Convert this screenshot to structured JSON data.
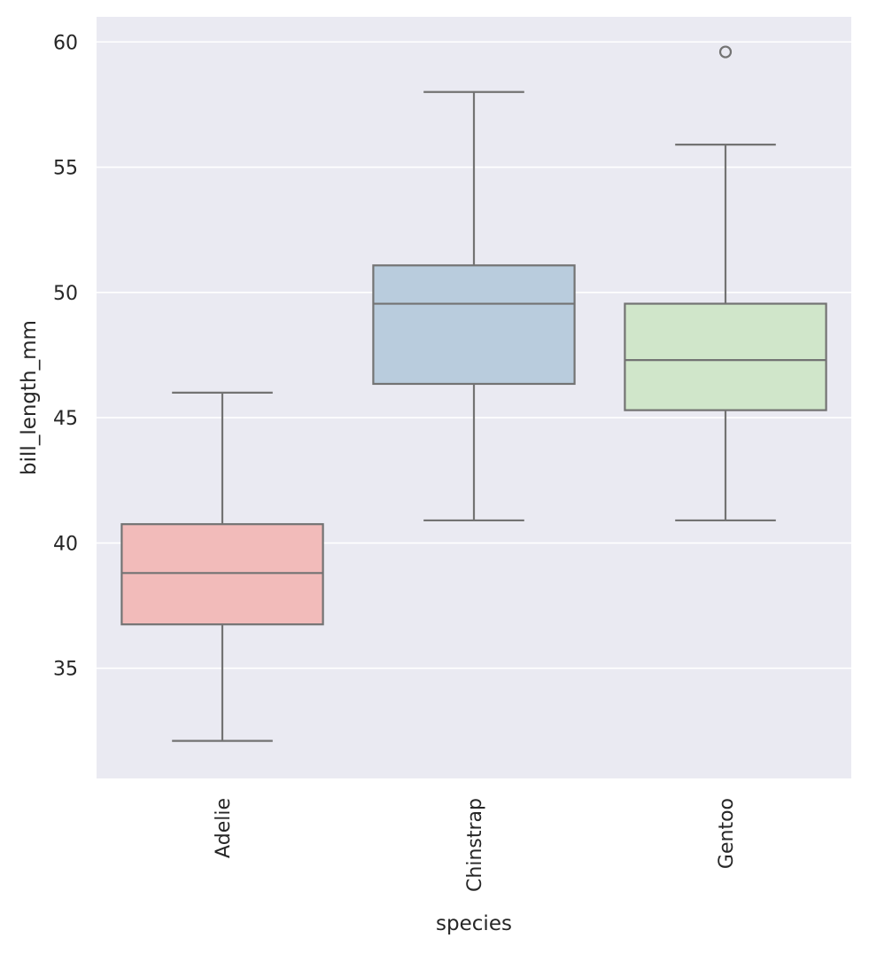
{
  "chart_data": {
    "type": "box",
    "xlabel": "species",
    "ylabel": "bill_length_mm",
    "categories": [
      "Adelie",
      "Chinstrap",
      "Gentoo"
    ],
    "ylim": [
      30.6,
      61.0
    ],
    "yticks": [
      35,
      40,
      45,
      50,
      55,
      60
    ],
    "grid": true,
    "colors": {
      "background": "#EAEAF2",
      "grid": "#FFFFFF",
      "box_line": "#737373",
      "Adelie": "#F2BBBA",
      "Chinstrap": "#B9CCDD",
      "Gentoo": "#D0E6CA"
    },
    "boxes": [
      {
        "category": "Adelie",
        "whisker_low": 32.1,
        "q1": 36.75,
        "median": 38.8,
        "q3": 40.75,
        "whisker_high": 46.0,
        "outliers": []
      },
      {
        "category": "Chinstrap",
        "whisker_low": 40.9,
        "q1": 46.35,
        "median": 49.55,
        "q3": 51.08,
        "whisker_high": 58.0,
        "outliers": []
      },
      {
        "category": "Gentoo",
        "whisker_low": 40.9,
        "q1": 45.3,
        "median": 47.3,
        "q3": 49.55,
        "whisker_high": 55.9,
        "outliers": [
          59.6
        ]
      }
    ]
  }
}
